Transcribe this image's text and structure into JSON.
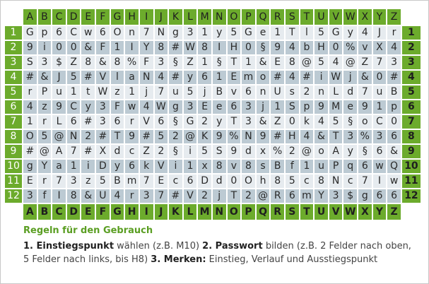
{
  "columns": [
    "A",
    "B",
    "C",
    "D",
    "E",
    "F",
    "G",
    "H",
    "I",
    "J",
    "K",
    "L",
    "M",
    "N",
    "O",
    "P",
    "Q",
    "R",
    "S",
    "T",
    "U",
    "V",
    "W",
    "X",
    "Y",
    "Z"
  ],
  "rows": [
    {
      "num": "1",
      "cells": [
        "G",
        "p",
        "6",
        "C",
        "w",
        "6",
        "O",
        "n",
        "7",
        "N",
        "g",
        "3",
        "1",
        "y",
        "5",
        "G",
        "e",
        "1",
        "T",
        "l",
        "5",
        "G",
        "y",
        "4",
        "J",
        "r"
      ]
    },
    {
      "num": "2",
      "cells": [
        "9",
        "i",
        "0",
        "0",
        "&",
        "F",
        "1",
        "I",
        "Y",
        "8",
        "#",
        "W",
        "8",
        "I",
        "H",
        "0",
        "§",
        "9",
        "4",
        "b",
        "H",
        "0",
        "%",
        "v",
        "X",
        "4"
      ]
    },
    {
      "num": "3",
      "cells": [
        "S",
        "3",
        "$",
        "Z",
        "8",
        "&",
        "8",
        "%",
        "F",
        "3",
        "§",
        "Z",
        "1",
        "§",
        "T",
        "1",
        "&",
        "E",
        "8",
        "@",
        "5",
        "4",
        "@",
        "Z",
        "7",
        "3"
      ]
    },
    {
      "num": "4",
      "cells": [
        "#",
        "&",
        "J",
        "5",
        "#",
        "V",
        "l",
        "a",
        "N",
        "4",
        "#",
        "y",
        "6",
        "1",
        "E",
        "m",
        "o",
        "#",
        "4",
        "#",
        "i",
        "W",
        "j",
        "&",
        "0",
        "#"
      ]
    },
    {
      "num": "5",
      "cells": [
        "r",
        "P",
        "u",
        "1",
        "t",
        "W",
        "z",
        "1",
        "j",
        "7",
        "u",
        "5",
        "j",
        "B",
        "v",
        "6",
        "n",
        "U",
        "s",
        "2",
        "n",
        "L",
        "d",
        "7",
        "u",
        "B"
      ]
    },
    {
      "num": "6",
      "cells": [
        "4",
        "z",
        "9",
        "C",
        "y",
        "3",
        "F",
        "w",
        "4",
        "W",
        "g",
        "3",
        "E",
        "e",
        "6",
        "3",
        "j",
        "1",
        "S",
        "p",
        "9",
        "M",
        "e",
        "9",
        "1",
        "p"
      ]
    },
    {
      "num": "7",
      "cells": [
        "1",
        "r",
        "L",
        "6",
        "#",
        "3",
        "6",
        "r",
        "V",
        "6",
        "§",
        "G",
        "2",
        "y",
        "T",
        "3",
        "&",
        "Z",
        "0",
        "k",
        "4",
        "5",
        "§",
        "o",
        "C",
        "0"
      ]
    },
    {
      "num": "8",
      "cells": [
        "O",
        "5",
        "@",
        "N",
        "2",
        "#",
        "T",
        "9",
        "#",
        "5",
        "2",
        "@",
        "K",
        "9",
        "%",
        "N",
        "9",
        "#",
        "H",
        "4",
        "&",
        "T",
        "3",
        "%",
        "3",
        "6"
      ]
    },
    {
      "num": "9",
      "cells": [
        "#",
        "@",
        "A",
        "7",
        "#",
        "X",
        "d",
        "c",
        "Z",
        "2",
        "§",
        "i",
        "5",
        "S",
        "9",
        "d",
        "x",
        "%",
        "2",
        "@",
        "o",
        "A",
        "y",
        "§",
        "6",
        "&"
      ]
    },
    {
      "num": "10",
      "cells": [
        "g",
        "Y",
        "a",
        "1",
        "i",
        "D",
        "y",
        "6",
        "k",
        "V",
        "i",
        "1",
        "x",
        "8",
        "v",
        "8",
        "s",
        "B",
        "f",
        "1",
        "u",
        "P",
        "q",
        "6",
        "w",
        "Q"
      ]
    },
    {
      "num": "11",
      "cells": [
        "E",
        "r",
        "7",
        "3",
        "z",
        "5",
        "B",
        "m",
        "7",
        "E",
        "c",
        "6",
        "D",
        "d",
        "0",
        "O",
        "h",
        "8",
        "5",
        "c",
        "8",
        "N",
        "c",
        "7",
        "I",
        "w"
      ]
    },
    {
      "num": "12",
      "cells": [
        "3",
        "f",
        "I",
        "8",
        "&",
        "U",
        "4",
        "r",
        "3",
        "7",
        "#",
        "V",
        "2",
        "j",
        "T",
        "2",
        "@",
        "R",
        "6",
        "m",
        "Y",
        "3",
        "$",
        "g",
        "6",
        "6"
      ]
    }
  ],
  "rules": {
    "title": "Regeln für den Gebrauch",
    "step1_label": "1. Einstiegspunkt",
    "step1_text": " wählen (z.B. M10) ",
    "step2_label": "2. Passwort",
    "step2_text": " bilden (z.B. 2 Felder nach oben, 5 Felder nach links, bis H8) ",
    "step3_label": "3. Merken:",
    "step3_text": " Einstieg, Verlauf und Ausstiegspunkt"
  },
  "colors": {
    "header_green": "#6cab2c",
    "row_light": "#e6ebef",
    "row_dark": "#bccad3",
    "title_green": "#5a9e22"
  }
}
